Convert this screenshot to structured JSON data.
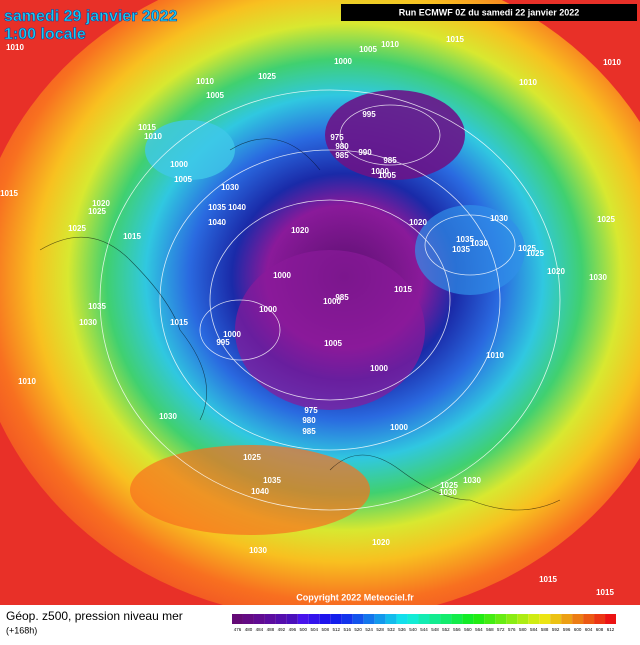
{
  "header": {
    "date": "samedi 29 janvier 2022",
    "time": "1:00 locale",
    "pressure_corner": "1010",
    "run": "Run ECMWF 0Z du samedi 22 janvier 2022"
  },
  "footer": {
    "title": "Géop. z500, pression niveau mer",
    "lead": "(+168h)",
    "copyright": "Copyright 2022 Meteociel.fr"
  },
  "legend": {
    "values": [
      476,
      480,
      484,
      488,
      492,
      496,
      500,
      504,
      508,
      512,
      516,
      520,
      524,
      528,
      532,
      536,
      540,
      544,
      548,
      552,
      556,
      560,
      564,
      568,
      572,
      576,
      580,
      584,
      588,
      592,
      596,
      600,
      604,
      608,
      612
    ]
  },
  "isobar_labels": [
    "1005",
    "1010",
    "1015",
    "1000",
    "1010",
    "1010",
    "1025",
    "1005",
    "1010",
    "995",
    "1015",
    "1010",
    "975",
    "980",
    "985",
    "990",
    "985",
    "1000",
    "1005",
    "1000",
    "1005",
    "1030",
    "1015",
    "1020",
    "1035",
    "1040",
    "1025",
    "1040",
    "1020",
    "1030",
    "1025",
    "1020",
    "1035",
    "1030",
    "1025",
    "1015",
    "1035",
    "1025",
    "1025",
    "1000",
    "1020",
    "1030",
    "985",
    "1000",
    "1015",
    "1035",
    "1030",
    "1000",
    "1015",
    "995",
    "1000",
    "1005",
    "1010",
    "1000",
    "975",
    "980",
    "985",
    "1000",
    "1010",
    "1030",
    "1025",
    "1035",
    "1040",
    "1030",
    "1025",
    "1030",
    "1020",
    "1030",
    "1015",
    "1015"
  ]
}
